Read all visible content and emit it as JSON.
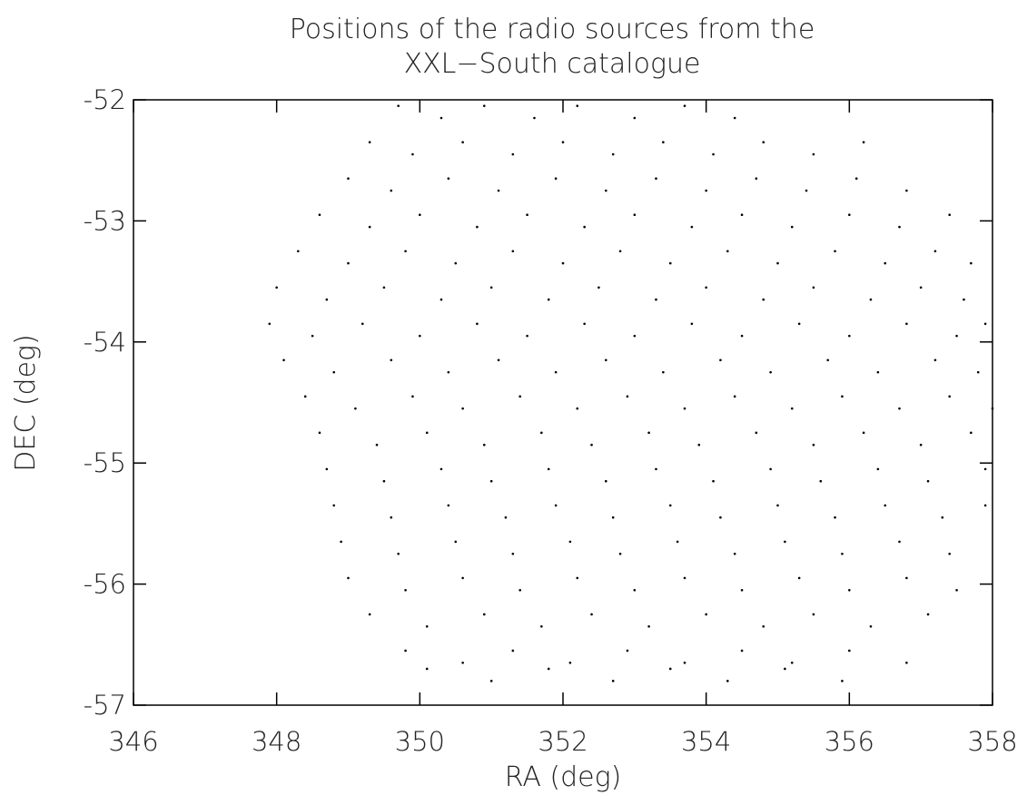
{
  "chart_data": {
    "type": "scatter",
    "title": [
      "Positions of the radio sources from the",
      "XXL−South catalogue"
    ],
    "x_label": "RA (deg)",
    "y_label": "DEC (deg)",
    "color": "#000000",
    "xlim": [
      346,
      358
    ],
    "ylim": [
      -57,
      -52
    ],
    "xticks": [
      346,
      348,
      350,
      352,
      354,
      356,
      358
    ],
    "yticks": [
      -57,
      -56,
      -55,
      -54,
      -53,
      -52
    ],
    "x": [
      349.7,
      350.3,
      350.9,
      351.6,
      352.2,
      353.0,
      353.7,
      354.4,
      349.3,
      349.9,
      350.6,
      351.3,
      352.0,
      352.7,
      353.4,
      354.1,
      354.8,
      355.5,
      356.2,
      349.0,
      349.6,
      350.4,
      351.1,
      351.9,
      352.6,
      353.3,
      354.0,
      354.7,
      355.4,
      356.1,
      356.8,
      348.6,
      349.3,
      350.0,
      350.8,
      351.5,
      352.3,
      353.0,
      353.8,
      354.5,
      355.2,
      356.0,
      356.7,
      357.4,
      348.3,
      349.0,
      349.8,
      350.5,
      351.3,
      352.0,
      352.8,
      353.5,
      354.3,
      355.0,
      355.8,
      356.5,
      357.2,
      357.7,
      348.0,
      348.7,
      349.5,
      350.3,
      351.0,
      351.8,
      352.5,
      353.3,
      354.0,
      354.8,
      355.5,
      356.3,
      357.0,
      357.6,
      347.9,
      348.5,
      349.2,
      350.0,
      350.8,
      351.5,
      352.3,
      353.0,
      353.8,
      354.5,
      355.3,
      356.0,
      356.8,
      357.5,
      357.9,
      348.1,
      348.8,
      349.6,
      350.4,
      351.1,
      351.9,
      352.6,
      353.4,
      354.2,
      354.9,
      355.7,
      356.4,
      357.2,
      357.8,
      348.4,
      349.1,
      349.9,
      350.6,
      351.4,
      352.2,
      352.9,
      353.7,
      354.4,
      355.2,
      355.9,
      356.7,
      357.4,
      358.0,
      348.6,
      349.4,
      350.1,
      350.9,
      351.7,
      352.4,
      353.2,
      353.9,
      354.7,
      355.5,
      356.2,
      357.0,
      357.7,
      348.7,
      349.5,
      350.3,
      351.0,
      351.8,
      352.6,
      353.3,
      354.1,
      354.9,
      355.6,
      356.4,
      357.1,
      357.9,
      348.8,
      349.6,
      350.4,
      351.2,
      351.9,
      352.7,
      353.5,
      354.2,
      355.0,
      355.8,
      356.5,
      357.3,
      357.9,
      348.9,
      349.7,
      350.5,
      351.3,
      352.1,
      352.8,
      353.6,
      354.4,
      355.1,
      355.9,
      356.7,
      357.4,
      349.0,
      349.8,
      350.6,
      351.4,
      352.2,
      353.0,
      353.7,
      354.5,
      355.3,
      356.0,
      356.8,
      357.5,
      349.3,
      350.1,
      350.9,
      351.7,
      352.4,
      353.2,
      354.0,
      354.8,
      355.5,
      356.3,
      357.1,
      349.8,
      350.6,
      351.3,
      352.1,
      352.9,
      353.7,
      354.5,
      355.2,
      356.0,
      356.8,
      350.1,
      351.0,
      351.8,
      352.7,
      353.5,
      354.3,
      355.1,
      355.9
    ],
    "values": [
      -52.05,
      -52.15,
      -52.05,
      -52.15,
      -52.05,
      -52.15,
      -52.05,
      -52.15,
      -52.35,
      -52.45,
      -52.35,
      -52.45,
      -52.35,
      -52.45,
      -52.35,
      -52.45,
      -52.35,
      -52.45,
      -52.35,
      -52.65,
      -52.75,
      -52.65,
      -52.75,
      -52.65,
      -52.75,
      -52.65,
      -52.75,
      -52.65,
      -52.75,
      -52.65,
      -52.75,
      -52.95,
      -53.05,
      -52.95,
      -53.05,
      -52.95,
      -53.05,
      -52.95,
      -53.05,
      -52.95,
      -53.05,
      -52.95,
      -53.05,
      -52.95,
      -53.25,
      -53.35,
      -53.25,
      -53.35,
      -53.25,
      -53.35,
      -53.25,
      -53.35,
      -53.25,
      -53.35,
      -53.25,
      -53.35,
      -53.25,
      -53.35,
      -53.55,
      -53.65,
      -53.55,
      -53.65,
      -53.55,
      -53.65,
      -53.55,
      -53.65,
      -53.55,
      -53.65,
      -53.55,
      -53.65,
      -53.55,
      -53.65,
      -53.85,
      -53.95,
      -53.85,
      -53.95,
      -53.85,
      -53.95,
      -53.85,
      -53.95,
      -53.85,
      -53.95,
      -53.85,
      -53.95,
      -53.85,
      -53.95,
      -53.85,
      -54.15,
      -54.25,
      -54.15,
      -54.25,
      -54.15,
      -54.25,
      -54.15,
      -54.25,
      -54.15,
      -54.25,
      -54.15,
      -54.25,
      -54.15,
      -54.25,
      -54.45,
      -54.55,
      -54.45,
      -54.55,
      -54.45,
      -54.55,
      -54.45,
      -54.55,
      -54.45,
      -54.55,
      -54.45,
      -54.55,
      -54.45,
      -54.55,
      -54.75,
      -54.85,
      -54.75,
      -54.85,
      -54.75,
      -54.85,
      -54.75,
      -54.85,
      -54.75,
      -54.85,
      -54.75,
      -54.85,
      -54.75,
      -55.05,
      -55.15,
      -55.05,
      -55.15,
      -55.05,
      -55.15,
      -55.05,
      -55.15,
      -55.05,
      -55.15,
      -55.05,
      -55.15,
      -55.05,
      -55.35,
      -55.45,
      -55.35,
      -55.45,
      -55.35,
      -55.45,
      -55.35,
      -55.45,
      -55.35,
      -55.45,
      -55.35,
      -55.45,
      -55.35,
      -55.65,
      -55.75,
      -55.65,
      -55.75,
      -55.65,
      -55.75,
      -55.65,
      -55.75,
      -55.65,
      -55.75,
      -55.65,
      -55.75,
      -55.95,
      -56.05,
      -55.95,
      -56.05,
      -55.95,
      -56.05,
      -55.95,
      -56.05,
      -55.95,
      -56.05,
      -55.95,
      -56.05,
      -56.25,
      -56.35,
      -56.25,
      -56.35,
      -56.25,
      -56.35,
      -56.25,
      -56.35,
      -56.25,
      -56.35,
      -56.25,
      -56.55,
      -56.65,
      -56.55,
      -56.65,
      -56.55,
      -56.65,
      -56.55,
      -56.65,
      -56.55,
      -56.65,
      -56.7,
      -56.8,
      -56.7,
      -56.8,
      -56.7,
      -56.8,
      -56.7,
      -56.8
    ]
  }
}
